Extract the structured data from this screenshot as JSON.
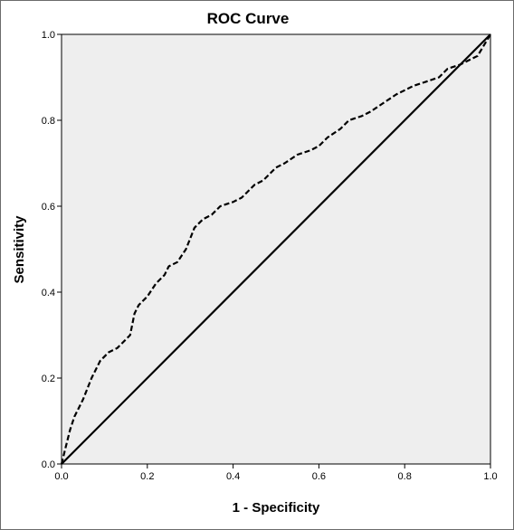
{
  "chart_data": {
    "type": "line",
    "title": "ROC Curve",
    "xlabel": "1 - Specificity",
    "ylabel": "Sensitivity",
    "xlim": [
      0,
      1
    ],
    "ylim": [
      0,
      1
    ],
    "x_ticks": [
      "0.0",
      "0.2",
      "0.4",
      "0.6",
      "0.8",
      "1.0"
    ],
    "y_ticks": [
      "0.0",
      "0.2",
      "0.4",
      "0.6",
      "0.8",
      "1.0"
    ],
    "grid": false,
    "legend": "none",
    "plot_background": "#eeeeee",
    "series": [
      {
        "style": "dashed",
        "color": "#000000",
        "x": [
          0.0,
          0.01,
          0.02,
          0.03,
          0.05,
          0.07,
          0.09,
          0.11,
          0.13,
          0.15,
          0.16,
          0.17,
          0.18,
          0.2,
          0.22,
          0.24,
          0.25,
          0.27,
          0.29,
          0.31,
          0.33,
          0.35,
          0.37,
          0.4,
          0.42,
          0.45,
          0.47,
          0.5,
          0.52,
          0.55,
          0.58,
          0.6,
          0.62,
          0.65,
          0.67,
          0.7,
          0.72,
          0.75,
          0.78,
          0.8,
          0.82,
          0.85,
          0.88,
          0.9,
          0.93,
          0.95,
          0.97,
          1.0
        ],
        "y": [
          0.0,
          0.04,
          0.08,
          0.11,
          0.15,
          0.2,
          0.24,
          0.26,
          0.27,
          0.29,
          0.3,
          0.35,
          0.37,
          0.39,
          0.42,
          0.44,
          0.46,
          0.47,
          0.5,
          0.55,
          0.57,
          0.58,
          0.6,
          0.61,
          0.62,
          0.65,
          0.66,
          0.69,
          0.7,
          0.72,
          0.73,
          0.74,
          0.76,
          0.78,
          0.8,
          0.81,
          0.82,
          0.84,
          0.86,
          0.87,
          0.88,
          0.89,
          0.9,
          0.92,
          0.93,
          0.94,
          0.95,
          1.0
        ]
      },
      {
        "style": "solid",
        "color": "#000000",
        "x": [
          0.0,
          1.0
        ],
        "y": [
          0.0,
          1.0
        ]
      }
    ]
  }
}
